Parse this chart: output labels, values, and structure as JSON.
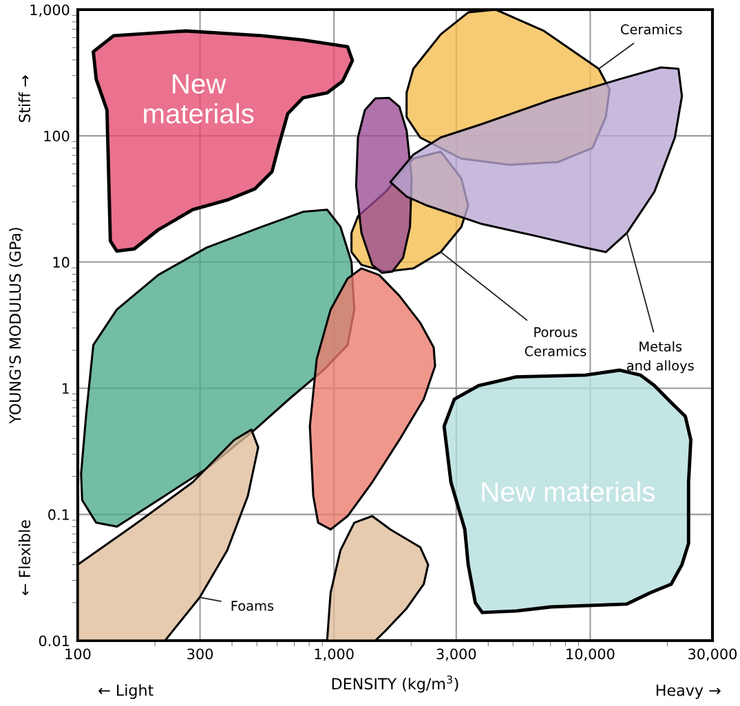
{
  "chart_data": {
    "type": "area",
    "log": "xy",
    "grid": true,
    "xlabel": "DENSITY (kg/m$^{3}$)",
    "ylabel": "YOUNG'S MODULUS (GPa)",
    "xlim": [
      100,
      30000
    ],
    "ylim": [
      0.01,
      1000
    ],
    "xticks": [
      100,
      300,
      {
        "value": 1000,
        "label": "1,000"
      },
      {
        "value": 3000,
        "label": "3,000"
      },
      {
        "value": 10000,
        "label": "10,000"
      },
      {
        "value": 30000,
        "label": "30,000"
      }
    ],
    "yticks": [
      0.01,
      0.1,
      1,
      10,
      100,
      {
        "value": 1000,
        "label": "1,000"
      }
    ],
    "annotations": [
      "← Light",
      "Heavy →",
      "Stiff →",
      "← Flexible"
    ],
    "series": [
      {
        "name": "Ceramics",
        "color": "#f5bd4d",
        "x": [
          1920,
          2040,
          2610,
          3340,
          4280,
          6600,
          10800,
          11900,
          11500,
          10200,
          7480,
          4850,
          3140,
          2170,
          1920
        ],
        "values": [
          219,
          340,
          637,
          950,
          1000,
          678,
          340,
          233,
          141,
          80,
          62,
          59,
          66,
          97,
          141
        ]
      },
      {
        "name": "Porous Ceramics",
        "color": "#f5bd4d",
        "x": [
          1170,
          1240,
          1590,
          2040,
          2610,
          3140,
          3340,
          3140,
          2610,
          2040,
          1590,
          1280,
          1170
        ],
        "values": [
          17,
          23,
          36,
          66,
          75,
          46,
          28,
          19,
          12,
          8.9,
          8.4,
          9.5,
          12
        ]
      },
      {
        "color": "#9a4a94",
        "x": [
          1240,
          1320,
          1450,
          1640,
          1800,
          1920,
          2010,
          1980,
          1860,
          1690,
          1540,
          1410,
          1280,
          1220
        ],
        "values": [
          97,
          160,
          198,
          200,
          170,
          110,
          46,
          19,
          10.8,
          8.4,
          8.2,
          9.5,
          17,
          40
        ]
      },
      {
        "name": "Metals and alloys",
        "color": "#b8a6d4",
        "x": [
          1660,
          2040,
          2610,
          3780,
          7030,
          13000,
          18900,
          22100,
          22800,
          21400,
          17800,
          13900,
          11500,
          9570,
          6210,
          3780,
          2310,
          1920
        ],
        "values": [
          43,
          71,
          97,
          124,
          193,
          281,
          348,
          340,
          206,
          97,
          36,
          17,
          12,
          13,
          16,
          20,
          28,
          33
        ]
      },
      {
        "color": "#4aaa8a",
        "x": [
          103,
          108,
          115,
          142,
          206,
          318,
          522,
          757,
          940,
          1060,
          1170,
          1200,
          1130,
          912,
          668,
          491,
          318,
          206,
          142,
          118,
          104
        ],
        "values": [
          0.21,
          0.64,
          2.2,
          4.2,
          7.9,
          13,
          19,
          25,
          26,
          19,
          10,
          4.2,
          2.2,
          1.4,
          0.82,
          0.47,
          0.23,
          0.13,
          0.08,
          0.086,
          0.13
        ]
      },
      {
        "color": "#ec7a6b",
        "x": [
          830,
          805,
          856,
          970,
          1130,
          1280,
          1500,
          1800,
          2170,
          2450,
          2480,
          2240,
          1800,
          1410,
          1130,
          970,
          867
        ],
        "values": [
          0.14,
          0.5,
          1.7,
          4.2,
          7.4,
          8.9,
          7.9,
          5.4,
          3.3,
          2.1,
          1.5,
          0.82,
          0.39,
          0.18,
          0.097,
          0.076,
          0.086
        ]
      },
      {
        "name": "Foams",
        "color": "#dfbd9a",
        "x": [
          100,
          171,
          281,
          408,
          476,
          506,
          461,
          383,
          299,
          219,
          100
        ],
        "values": [
          0.04,
          0.086,
          0.18,
          0.39,
          0.47,
          0.34,
          0.14,
          0.052,
          0.022,
          0.01,
          0.01
        ]
      },
      {
        "color": "#dfbd9a",
        "x": [
          940,
          970,
          1060,
          1200,
          1410,
          1660,
          2170,
          2330,
          2240,
          1920,
          1590,
          1450
        ],
        "values": [
          0.01,
          0.024,
          0.052,
          0.086,
          0.097,
          0.076,
          0.055,
          0.04,
          0.028,
          0.018,
          0.012,
          0.01
        ]
      },
      {
        "name": "New materials",
        "color": "#e44a6e",
        "x": [
          115,
          138,
          264,
          522,
          757,
          1130,
          1180,
          1080,
          940,
          757,
          660,
          610,
          573,
          491,
          383,
          281,
          206,
          166,
          142,
          134,
          130,
          118
        ],
        "values": [
          464,
          621,
          678,
          621,
          575,
          508,
          395,
          271,
          219,
          200,
          150,
          85,
          52,
          38,
          31,
          26,
          18,
          12.7,
          12.2,
          14.7,
          160,
          281
        ]
      },
      {
        "name": "New materials",
        "color": "#b2dedc",
        "x": [
          2690,
          2950,
          3670,
          5160,
          9570,
          13000,
          15700,
          17800,
          20700,
          23500,
          24700,
          24200,
          24200,
          22800,
          20700,
          17200,
          13900,
          7030,
          5160,
          3790,
          3560,
          3340,
          3240,
          2860
        ],
        "values": [
          0.5,
          0.82,
          1.05,
          1.23,
          1.27,
          1.39,
          1.27,
          1.05,
          0.77,
          0.6,
          0.39,
          0.18,
          0.059,
          0.04,
          0.028,
          0.024,
          0.0195,
          0.0185,
          0.0172,
          0.0167,
          0.02,
          0.04,
          0.076,
          0.18
        ]
      }
    ]
  }
}
